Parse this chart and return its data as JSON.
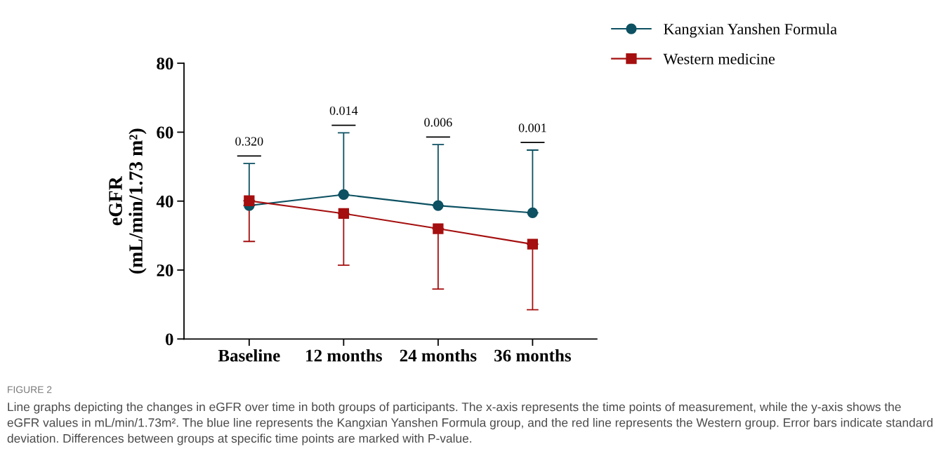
{
  "chart_data": {
    "type": "line",
    "ylabel": "eGFR\n(mL/min/1.73 m²)",
    "categories": [
      "Baseline",
      "12 months",
      "24 months",
      "36 months"
    ],
    "series": [
      {
        "name": "Kangxian Yanshen Formula",
        "color": "#0d5162",
        "marker": "circle",
        "values": [
          38.7,
          41.9,
          38.7,
          36.6
        ],
        "errors": [
          [
            38.7,
            50.9
          ],
          [
            41.9,
            59.8
          ],
          [
            38.7,
            56.4
          ],
          [
            36.6,
            54.8
          ]
        ]
      },
      {
        "name": "Western medicine",
        "color": "#a50f0f",
        "marker": "square",
        "values": [
          40.1,
          36.4,
          32.0,
          27.5
        ],
        "errors": [
          [
            28.3,
            40.1
          ],
          [
            21.4,
            36.4
          ],
          [
            14.5,
            32.0
          ],
          [
            8.5,
            27.5
          ]
        ]
      }
    ],
    "ylim": [
      0,
      80
    ],
    "yticks": [
      0,
      20,
      40,
      60,
      80
    ],
    "grid": false,
    "legend": "top right",
    "line_style": "solid",
    "annotations": [
      "0.320",
      "0.014",
      "0.006",
      "0.001",
      "FIGURE 2",
      "Line graphs depicting the changes in eGFR over time in both groups of participants. The x-axis represents the time points of measurement, while the y-axis shows the eGFR values in mL/min/1.73m². The blue line represents the Kangxian Yanshen Formula group, and the red line represents the Western group. Error bars indicate standard deviation. Differences between groups at specific time points are marked with P-value."
    ]
  }
}
